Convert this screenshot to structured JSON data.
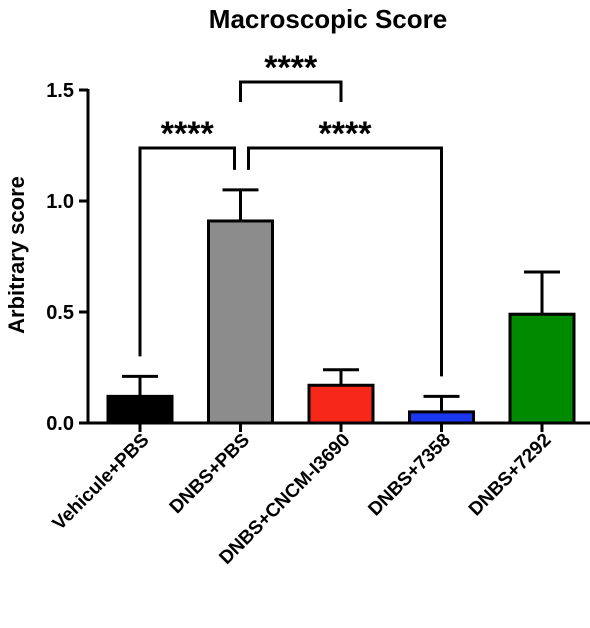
{
  "chart_data": {
    "type": "bar",
    "title": "Macroscopic Score",
    "ylabel": "Arbitrary score",
    "xlabel": "",
    "ylim": [
      0,
      1.5
    ],
    "yticks": [
      "0.0",
      "0.5",
      "1.0",
      "1.5"
    ],
    "ytick_values": [
      0,
      0.5,
      1.0,
      1.5
    ],
    "categories": [
      "Vehicule+PBS",
      "DNBS+PBS",
      "DNBS+CNCM-I3690",
      "DNBS+7358",
      "DNBS+7292"
    ],
    "values": [
      0.12,
      0.91,
      0.17,
      0.05,
      0.49
    ],
    "errors": [
      0.09,
      0.14,
      0.07,
      0.07,
      0.19
    ],
    "colors": [
      "#000000",
      "#8c8c8c",
      "#f7281a",
      "#1a36ee",
      "#008a00"
    ],
    "grid": false,
    "significance": [
      {
        "from": 0,
        "to": 1,
        "label": "****"
      },
      {
        "from": 1,
        "to": 2,
        "label": "****"
      },
      {
        "from": 1,
        "to": 3,
        "label": "****"
      }
    ]
  }
}
